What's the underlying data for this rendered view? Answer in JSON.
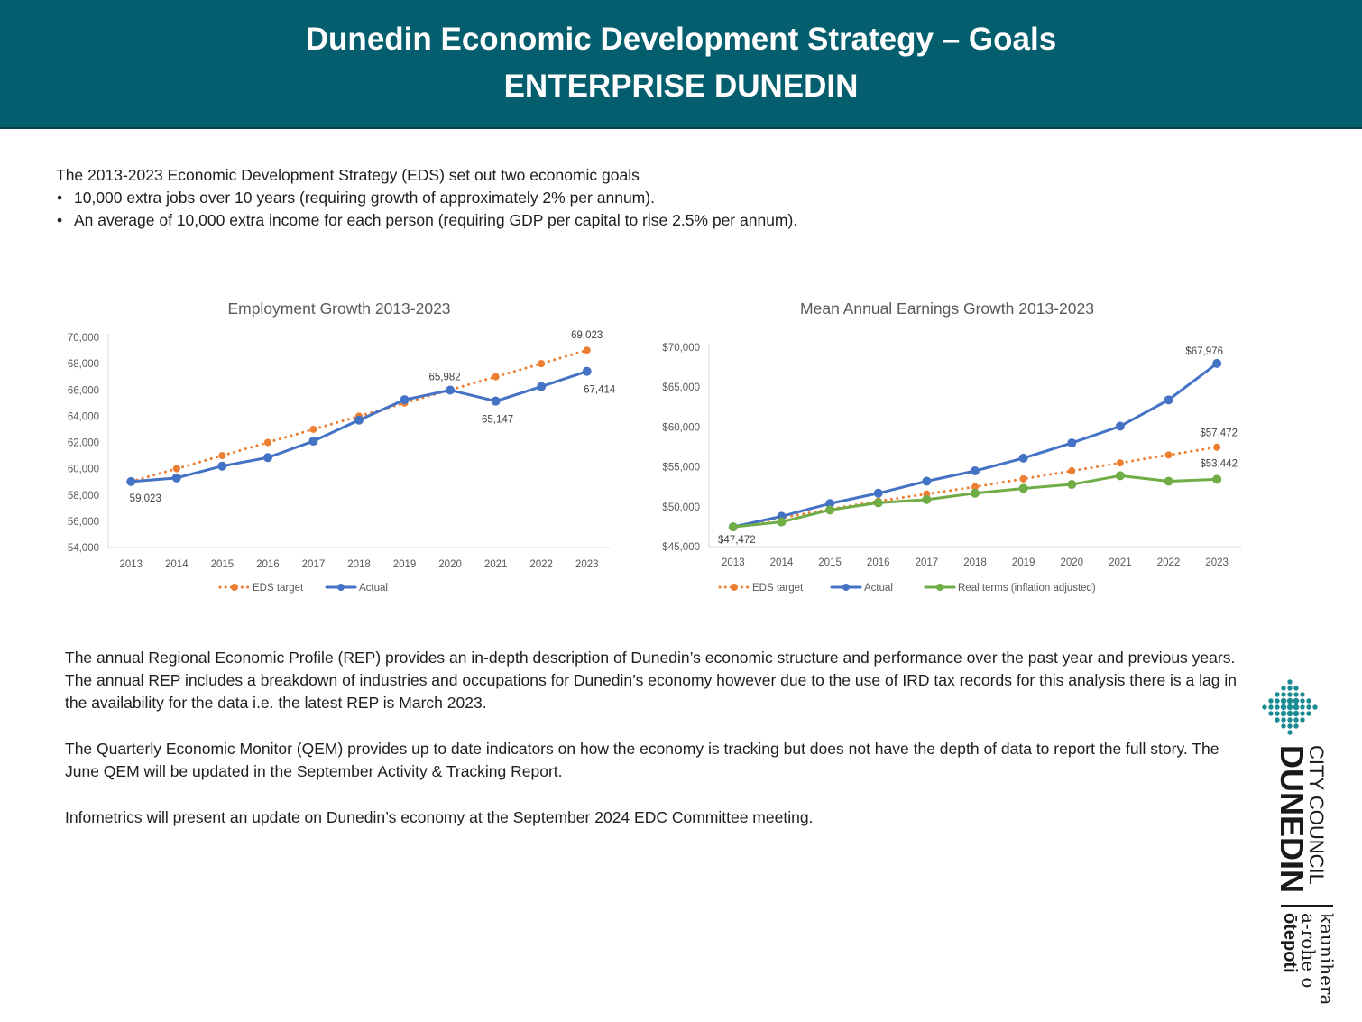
{
  "header": {
    "title": "Dunedin Economic Development Strategy – Goals",
    "subtitle": "ENTERPRISE DUNEDIN"
  },
  "intro": {
    "lead": "The 2013-2023 Economic Development Strategy (EDS) set out two economic goals",
    "bullets": [
      "10,000 extra jobs over 10 years (requiring growth of approximately 2% per annum).",
      "An average of 10,000 extra income for each person (requiring GDP per capital to rise 2.5% per annum)."
    ]
  },
  "chart_data": [
    {
      "type": "line",
      "title": "Employment Growth 2013-2023",
      "categories": [
        "2013",
        "2014",
        "2015",
        "2016",
        "2017",
        "2018",
        "2019",
        "2020",
        "2021",
        "2022",
        "2023"
      ],
      "ylim": [
        54000,
        70000
      ],
      "yticks": [
        "54,000",
        "56,000",
        "58,000",
        "60,000",
        "62,000",
        "64,000",
        "66,000",
        "68,000",
        "70,000"
      ],
      "ytick_values": [
        54000,
        56000,
        58000,
        60000,
        62000,
        64000,
        66000,
        68000,
        70000
      ],
      "legend_position": "bottom",
      "series": [
        {
          "name": "EDS target",
          "style": "dotted",
          "color": "#ed7d31",
          "values": [
            59023,
            60000,
            61000,
            62000,
            63000,
            64000,
            65000,
            66000,
            67000,
            68000,
            69023
          ]
        },
        {
          "name": "Actual",
          "style": "solid",
          "color": "#4472c4",
          "values": [
            59023,
            59300,
            60200,
            60850,
            62100,
            63700,
            65250,
            65982,
            65147,
            66250,
            67414
          ]
        }
      ],
      "data_labels": [
        {
          "series": 1,
          "index": 0,
          "text": "59,023"
        },
        {
          "series": 1,
          "index": 7,
          "text": "65,982"
        },
        {
          "series": 1,
          "index": 8,
          "text": "65,147"
        },
        {
          "series": 1,
          "index": 10,
          "text": "67,414"
        },
        {
          "series": 0,
          "index": 10,
          "text": "69,023"
        }
      ]
    },
    {
      "type": "line",
      "title": "Mean Annual Earnings Growth 2013-2023",
      "categories": [
        "2013",
        "2014",
        "2015",
        "2016",
        "2017",
        "2018",
        "2019",
        "2020",
        "2021",
        "2022",
        "2023"
      ],
      "ylim": [
        45000,
        70000
      ],
      "yticks": [
        "$45,000",
        "$50,000",
        "$55,000",
        "$60,000",
        "$65,000",
        "$70,000"
      ],
      "ytick_values": [
        45000,
        50000,
        55000,
        60000,
        65000,
        70000
      ],
      "legend_position": "bottom",
      "series": [
        {
          "name": "EDS target",
          "style": "dotted",
          "color": "#ed7d31",
          "values": [
            47472,
            48600,
            49700,
            50700,
            51600,
            52500,
            53500,
            54500,
            55500,
            56500,
            57472
          ]
        },
        {
          "name": "Actual",
          "style": "solid",
          "color": "#4472c4",
          "values": [
            47472,
            48800,
            50400,
            51700,
            53200,
            54500,
            56100,
            58000,
            60100,
            63400,
            67976
          ]
        },
        {
          "name": "Real terms (inflation adjusted)",
          "style": "solid",
          "color": "#70ad47",
          "values": [
            47472,
            48100,
            49600,
            50500,
            50900,
            51700,
            52300,
            52800,
            53900,
            53200,
            53442
          ]
        }
      ],
      "data_labels": [
        {
          "series": 1,
          "index": 0,
          "text": "$47,472"
        },
        {
          "series": 1,
          "index": 10,
          "text": "$67,976"
        },
        {
          "series": 0,
          "index": 10,
          "text": "$57,472"
        },
        {
          "series": 2,
          "index": 10,
          "text": "$53,442"
        }
      ]
    }
  ],
  "body": {
    "paragraphs": [
      "The annual Regional Economic Profile (REP) provides an in-depth description of Dunedin’s economic structure and performance over the past year and previous years. The annual REP includes a breakdown of industries and occupations for Dunedin’s economy however due to the use of IRD tax records for this analysis there is a lag in the availability for the data i.e. the latest REP is March 2023.",
      "The Quarterly Economic Monitor (QEM) provides up to date indicators on how the economy is tracking but does not have the depth of data to report the full story.  The June QEM will be updated in the September Activity & Tracking Report.",
      "Infometrics will present an update on Dunedin’s economy at the September 2024 EDC Committee meeting."
    ]
  },
  "logo": {
    "name_line1": "DUNEDIN",
    "name_line2": "CITY COUNCIL",
    "maori_line1": "kaunihera",
    "maori_line2": "a-rohe o",
    "maori_line3": "ōtepoti",
    "color": "#1a8a94"
  }
}
